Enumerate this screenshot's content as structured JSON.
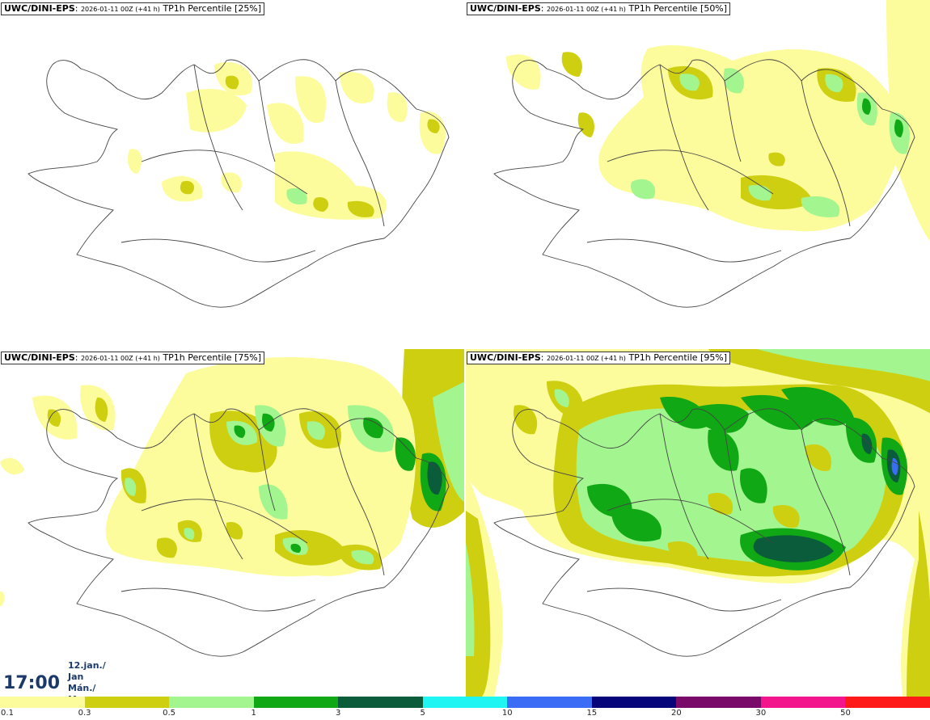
{
  "panels": [
    {
      "model": "UWC/DINI-EPS",
      "meta": "2026-01-11 00Z (+41 h)",
      "label": "TP1h Percentile [25%]"
    },
    {
      "model": "UWC/DINI-EPS",
      "meta": "2026-01-11 00Z (+41 h)",
      "label": "TP1h Percentile [50%]"
    },
    {
      "model": "UWC/DINI-EPS",
      "meta": "2026-01-11 00Z (+41 h)",
      "label": "TP1h Percentile [75%]"
    },
    {
      "model": "UWC/DINI-EPS",
      "meta": "2026-01-11 00Z (+41 h)",
      "label": "TP1h Percentile [95%]"
    }
  ],
  "time": {
    "clock": "17:00",
    "date_line": "12.jan./ Jan",
    "day_line": "Mán./ Mon"
  },
  "legend": {
    "colors": [
      "#fdfc9c",
      "#cfcf12",
      "#a3f58f",
      "#10a814",
      "#0a5c3a",
      "#1ff6f4",
      "#3b6cf5",
      "#06067a",
      "#7a0a6a",
      "#f2158c",
      "#ff1a1a"
    ],
    "ticks": [
      "0.1",
      "0.3",
      "0.5",
      "1",
      "3",
      "5",
      "10",
      "15",
      "20",
      "30",
      "50"
    ]
  }
}
